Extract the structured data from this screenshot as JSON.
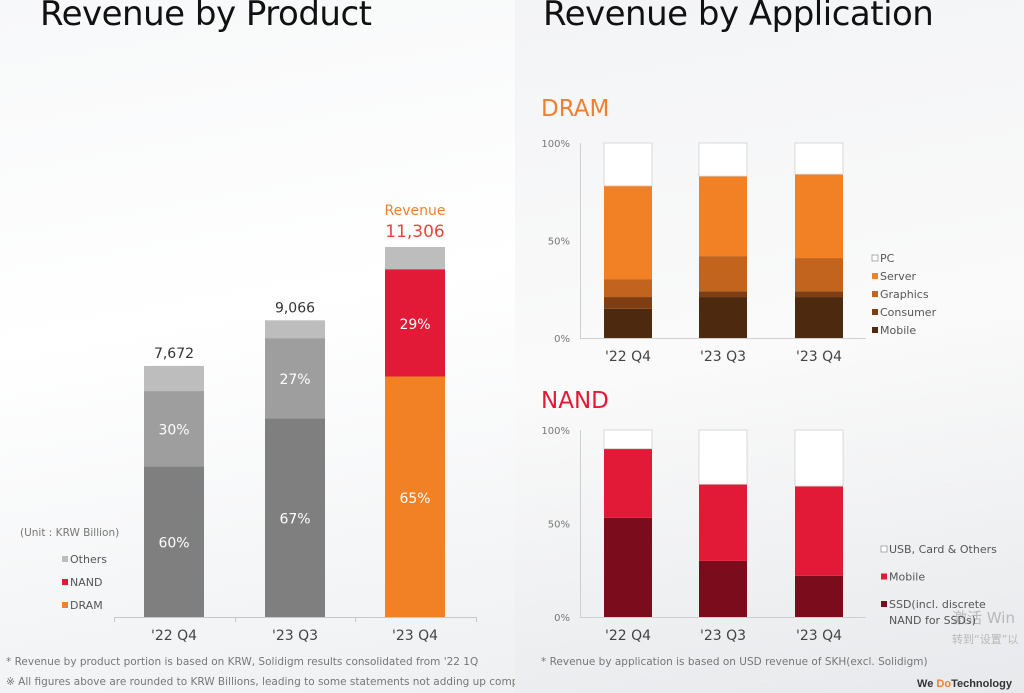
{
  "colors": {
    "dram": "#f28126",
    "nand": "#e31a37",
    "others_product": "#bdbdbd",
    "nand_gray": "#9e9e9e",
    "dram_gray": "#7f7f7f",
    "revenue_accent": "#f08030",
    "revenue_number": "#e8453c",
    "dram_title": "#f08030",
    "nand_title": "#e31a37"
  },
  "left": {
    "title": "Revenue by Product",
    "unit": "(Unit : KRW Billion)",
    "revenue_label": "Revenue",
    "footnotes": [
      "* Revenue by product portion is based on KRW, Solidigm results consolidated from '22 1Q",
      "※ All figures above are rounded to KRW Billions, leading to some statements not adding up completely"
    ]
  },
  "right": {
    "title": "Revenue by Application",
    "footnote": "* Revenue by application is based on USD revenue of SKH(excl. Solidigm)",
    "brand": {
      "pre": "We ",
      "accent": "Do",
      "post": "Technology"
    },
    "watermark": [
      "激活 Win",
      "转到“设置”以"
    ]
  },
  "chart_data": [
    {
      "id": "product",
      "type": "bar",
      "stacked": true,
      "title": "Revenue by Product",
      "unit": "KRW Billion",
      "categories": [
        "'22 Q4",
        "'23 Q3",
        "'23 Q4"
      ],
      "totals": [
        7672,
        9066,
        11306
      ],
      "total_labels": [
        "7,672",
        "9,066",
        "11,306"
      ],
      "series": [
        {
          "name": "DRAM",
          "values": [
            60,
            67,
            65
          ],
          "labels": [
            "60%",
            "67%",
            "65%"
          ]
        },
        {
          "name": "NAND",
          "values": [
            30,
            27,
            29
          ],
          "labels": [
            "30%",
            "27%",
            "29%"
          ]
        },
        {
          "name": "Others",
          "values": [
            10,
            6,
            6
          ],
          "labels": [
            "",
            "",
            ""
          ]
        }
      ],
      "segment_colors": [
        [
          "#7f7f7f",
          "#9e9e9e",
          "#bdbdbd"
        ],
        [
          "#7f7f7f",
          "#9e9e9e",
          "#bdbdbd"
        ],
        [
          "#f28126",
          "#e31a37",
          "#bdbdbd"
        ]
      ],
      "legend": [
        {
          "name": "Others",
          "color": "#bdbdbd"
        },
        {
          "name": "NAND",
          "color": "#e31a37"
        },
        {
          "name": "DRAM",
          "color": "#f28126"
        }
      ],
      "legend_position": "left"
    },
    {
      "id": "dram",
      "type": "bar",
      "stacked": true,
      "title": "DRAM",
      "categories": [
        "'22 Q4",
        "'23 Q3",
        "'23 Q4"
      ],
      "yticks": [
        "0%",
        "50%",
        "100%"
      ],
      "ylim": [
        0,
        100
      ],
      "series": [
        {
          "name": "Mobile",
          "color": "#4d2a0f",
          "values": [
            15,
            21,
            21
          ]
        },
        {
          "name": "Consumer",
          "color": "#7f3d12",
          "values": [
            6,
            3,
            3
          ]
        },
        {
          "name": "Graphics",
          "color": "#c2641e",
          "values": [
            9,
            18,
            17
          ]
        },
        {
          "name": "Server",
          "color": "#f28126",
          "values": [
            48,
            41,
            43
          ]
        },
        {
          "name": "PC",
          "color": "#ffffff",
          "values": [
            22,
            17,
            16
          ]
        }
      ],
      "legend_order": [
        "PC",
        "Server",
        "Graphics",
        "Consumer",
        "Mobile"
      ],
      "legend_position": "right"
    },
    {
      "id": "nand",
      "type": "bar",
      "stacked": true,
      "title": "NAND",
      "categories": [
        "'22 Q4",
        "'23 Q3",
        "'23 Q4"
      ],
      "yticks": [
        "0%",
        "50%",
        "100%"
      ],
      "ylim": [
        0,
        100
      ],
      "series": [
        {
          "name": "SSD(incl. discrete NAND for SSDs)",
          "legend_lines": [
            "SSD(incl. discrete",
            "NAND for SSDs)"
          ],
          "color": "#7b0c1c",
          "values": [
            53,
            30,
            22
          ]
        },
        {
          "name": "Mobile",
          "legend_lines": [
            "Mobile"
          ],
          "color": "#e31a37",
          "values": [
            37,
            41,
            48
          ]
        },
        {
          "name": "USB, Card & Others",
          "legend_lines": [
            "USB, Card & Others"
          ],
          "color": "#ffffff",
          "values": [
            10,
            29,
            30
          ]
        }
      ],
      "legend_order": [
        "USB, Card & Others",
        "Mobile",
        "SSD(incl. discrete NAND for SSDs)"
      ],
      "legend_position": "right"
    }
  ]
}
